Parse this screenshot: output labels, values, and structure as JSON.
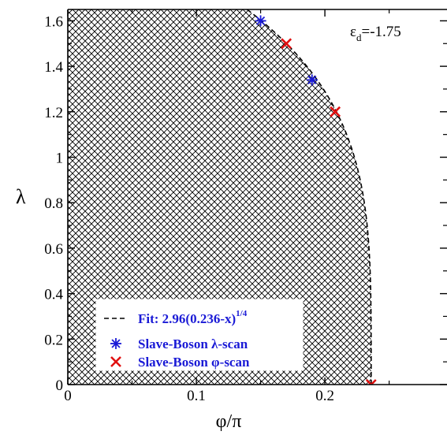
{
  "chart_data": {
    "type": "scatter",
    "xlabel": "φ/π",
    "ylabel": "λ",
    "xlim": [
      0,
      0.295
    ],
    "ylim": [
      0,
      1.65
    ],
    "x_ticks": [
      0,
      0.1,
      0.2
    ],
    "x_tick_labels": [
      "0",
      "0.1",
      "0.2"
    ],
    "y_ticks": [
      0,
      0.2,
      0.4,
      0.6,
      0.8,
      1.0,
      1.2,
      1.4,
      1.6
    ],
    "y_tick_labels": [
      "0",
      "0.2",
      "0.4",
      "0.6",
      "0.8",
      "1",
      "1.2",
      "1.4",
      "1.6"
    ],
    "annotation": "ε",
    "annotation_sub": "d",
    "annotation_value": "=-1.75",
    "fit": {
      "amplitude": 2.96,
      "x0": 0.236,
      "exponent": 0.25
    },
    "series": [
      {
        "name": "Fit: 2.96(0.236-x)",
        "name_sup": "1/4",
        "kind": "dashed-line",
        "color": "#000000"
      },
      {
        "name": "Slave-Boson λ-scan",
        "kind": "asterisk",
        "color": "#1a1ad6",
        "x": [
          0.15,
          0.19
        ],
        "y": [
          1.6,
          1.34
        ]
      },
      {
        "name": "Slave-Boson φ-scan",
        "kind": "cross",
        "color": "#e01010",
        "x": [
          0.17,
          0.208,
          0.236
        ],
        "y": [
          1.5,
          1.2,
          0.0
        ]
      }
    ],
    "region_fill": "crosshatch",
    "grid": false,
    "legend_position": "bottom-left"
  }
}
